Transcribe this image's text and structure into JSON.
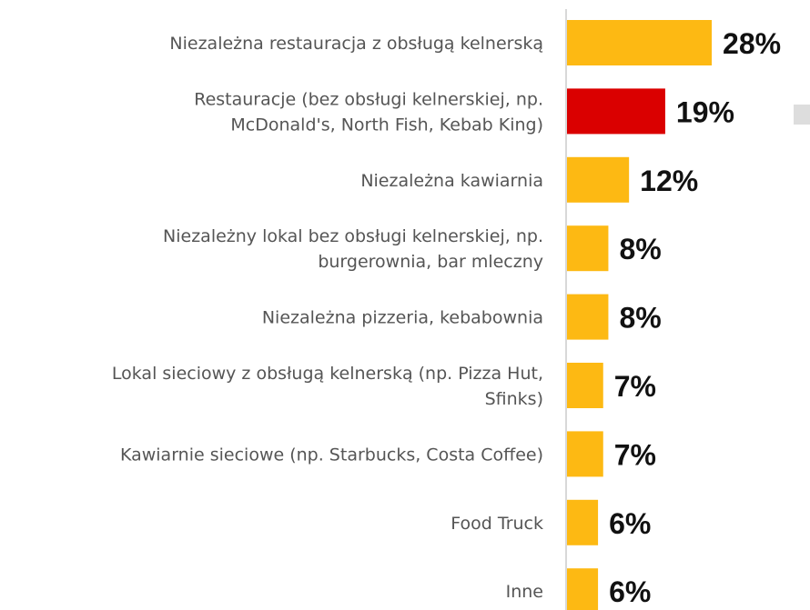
{
  "chart_data": {
    "type": "bar",
    "orientation": "horizontal",
    "categories": [
      "Niezależna restauracja z obsługą kelnerską",
      "Restauracje (bez obsługi kelnerskiej, np.\nMcDonald's, North Fish, Kebab King)",
      "Niezależna kawiarnia",
      "Niezależny lokal bez obsługi kelnerskiej, np.\nburgerownia, bar mleczny",
      "Niezależna pizzeria, kebabownia",
      "Lokal sieciowy z obsługą kelnerską (np. Pizza Hut,\nSfinks)",
      "Kawiarnie sieciowe (np. Starbucks, Costa Coffee)",
      "Food Truck",
      "Inne"
    ],
    "values": [
      28,
      19,
      12,
      8,
      8,
      7,
      7,
      6,
      6
    ],
    "value_labels": [
      "28%",
      "19%",
      "12%",
      "8%",
      "8%",
      "7%",
      "7%",
      "6%",
      "6%"
    ],
    "colors": [
      "#fdb913",
      "#da0000",
      "#fdb913",
      "#fdb913",
      "#fdb913",
      "#fdb913",
      "#fdb913",
      "#fdb913",
      "#fdb913"
    ]
  }
}
